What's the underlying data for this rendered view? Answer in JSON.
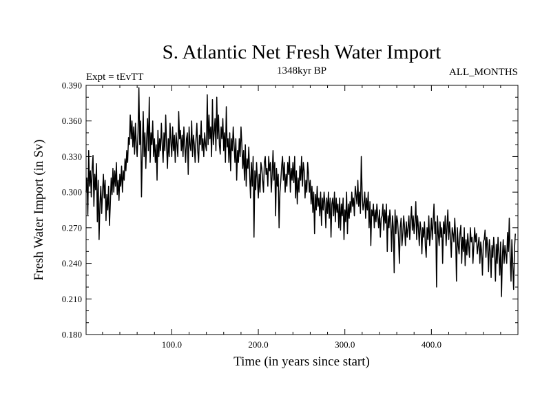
{
  "chart_data": {
    "type": "line",
    "title": "S. Atlantic Net Fresh Water Import",
    "subtitle_left": "Expt = tEvTT",
    "subtitle_center": "1348kyr BP",
    "subtitle_right": "ALL_MONTHS",
    "xlabel": "Time (in years since start)",
    "ylabel": "Fresh Water Import (in Sv)",
    "xlim": [
      1,
      500
    ],
    "ylim": [
      0.18,
      0.39
    ],
    "x_ticks": [
      100,
      200,
      300,
      400
    ],
    "x_tick_labels": [
      "100.0",
      "200.0",
      "300.0",
      "400.0"
    ],
    "y_ticks": [
      0.18,
      0.21,
      0.24,
      0.27,
      0.3,
      0.33,
      0.36,
      0.39
    ],
    "y_tick_labels": [
      "0.180",
      "0.210",
      "0.240",
      "0.270",
      "0.300",
      "0.330",
      "0.360",
      "0.390"
    ],
    "grid": false,
    "series": [
      {
        "name": "Fresh Water Import",
        "x_start": 1,
        "x_step": 1,
        "values": [
          0.3,
          0.312,
          0.281,
          0.335,
          0.305,
          0.318,
          0.296,
          0.32,
          0.331,
          0.288,
          0.315,
          0.302,
          0.324,
          0.275,
          0.31,
          0.26,
          0.29,
          0.305,
          0.282,
          0.3,
          0.315,
          0.295,
          0.31,
          0.276,
          0.298,
          0.285,
          0.305,
          0.272,
          0.29,
          0.312,
          0.298,
          0.32,
          0.3,
          0.318,
          0.305,
          0.325,
          0.298,
          0.31,
          0.293,
          0.315,
          0.305,
          0.322,
          0.3,
          0.318,
          0.31,
          0.328,
          0.318,
          0.335,
          0.325,
          0.346,
          0.34,
          0.365,
          0.345,
          0.36,
          0.338,
          0.355,
          0.332,
          0.358,
          0.34,
          0.33,
          0.35,
          0.388,
          0.34,
          0.36,
          0.296,
          0.335,
          0.368,
          0.33,
          0.35,
          0.32,
          0.345,
          0.362,
          0.335,
          0.38,
          0.325,
          0.35,
          0.34,
          0.36,
          0.33,
          0.345,
          0.325,
          0.34,
          0.31,
          0.352,
          0.33,
          0.345,
          0.335,
          0.358,
          0.34,
          0.325,
          0.35,
          0.335,
          0.365,
          0.34,
          0.32,
          0.345,
          0.33,
          0.358,
          0.342,
          0.33,
          0.355,
          0.335,
          0.348,
          0.325,
          0.35,
          0.34,
          0.33,
          0.368,
          0.345,
          0.352,
          0.335,
          0.348,
          0.33,
          0.355,
          0.34,
          0.325,
          0.345,
          0.35,
          0.315,
          0.355,
          0.34,
          0.335,
          0.36,
          0.33,
          0.348,
          0.34,
          0.325,
          0.345,
          0.358,
          0.335,
          0.325,
          0.348,
          0.34,
          0.36,
          0.335,
          0.345,
          0.33,
          0.35,
          0.34,
          0.335,
          0.382,
          0.34,
          0.365,
          0.345,
          0.355,
          0.33,
          0.378,
          0.34,
          0.35,
          0.362,
          0.335,
          0.38,
          0.345,
          0.365,
          0.34,
          0.332,
          0.355,
          0.345,
          0.362,
          0.335,
          0.35,
          0.325,
          0.372,
          0.338,
          0.345,
          0.325,
          0.35,
          0.318,
          0.345,
          0.335,
          0.355,
          0.34,
          0.325,
          0.345,
          0.31,
          0.335,
          0.325,
          0.345,
          0.33,
          0.355,
          0.34,
          0.32,
          0.335,
          0.31,
          0.34,
          0.305,
          0.328,
          0.32,
          0.338,
          0.315,
          0.295,
          0.325,
          0.305,
          0.33,
          0.262,
          0.318,
          0.302,
          0.325,
          0.31,
          0.295,
          0.315,
          0.3,
          0.325,
          0.32,
          0.31,
          0.3,
          0.325,
          0.33,
          0.315,
          0.32,
          0.305,
          0.33,
          0.318,
          0.325,
          0.3,
          0.315,
          0.335,
          0.31,
          0.325,
          0.28,
          0.32,
          0.305,
          0.315,
          0.27,
          0.3,
          0.31,
          0.322,
          0.33,
          0.31,
          0.325,
          0.3,
          0.315,
          0.305,
          0.325,
          0.315,
          0.33,
          0.3,
          0.32,
          0.31,
          0.325,
          0.308,
          0.33,
          0.295,
          0.318,
          0.29,
          0.312,
          0.3,
          0.322,
          0.31,
          0.33,
          0.305,
          0.325,
          0.318,
          0.295,
          0.31,
          0.3,
          0.325,
          0.315,
          0.3,
          0.31,
          0.29,
          0.305,
          0.283,
          0.3,
          0.265,
          0.298,
          0.285,
          0.305,
          0.288,
          0.295,
          0.28,
          0.3,
          0.272,
          0.295,
          0.285,
          0.3,
          0.29,
          0.27,
          0.295,
          0.282,
          0.3,
          0.278,
          0.295,
          0.262,
          0.29,
          0.295,
          0.28,
          0.3,
          0.275,
          0.295,
          0.283,
          0.29,
          0.27,
          0.295,
          0.268,
          0.29,
          0.28,
          0.295,
          0.26,
          0.285,
          0.275,
          0.3,
          0.265,
          0.29,
          0.278,
          0.292,
          0.283,
          0.3,
          0.288,
          0.295,
          0.28,
          0.305,
          0.298,
          0.29,
          0.31,
          0.288,
          0.3,
          0.282,
          0.33,
          0.298,
          0.285,
          0.29,
          0.3,
          0.278,
          0.295,
          0.285,
          0.3,
          0.27,
          0.292,
          0.255,
          0.285,
          0.28,
          0.29,
          0.27,
          0.285,
          0.275,
          0.29,
          0.28,
          0.27,
          0.285,
          0.262,
          0.278,
          0.28,
          0.29,
          0.268,
          0.285,
          0.274,
          0.29,
          0.25,
          0.28,
          0.27,
          0.285,
          0.275,
          0.25,
          0.28,
          0.27,
          0.232,
          0.285,
          0.265,
          0.28,
          0.275,
          0.262,
          0.24,
          0.27,
          0.278,
          0.255,
          0.265,
          0.28,
          0.27,
          0.255,
          0.275,
          0.262,
          0.27,
          0.28,
          0.26,
          0.275,
          0.288,
          0.268,
          0.28,
          0.265,
          0.275,
          0.292,
          0.26,
          0.28,
          0.27,
          0.255,
          0.275,
          0.268,
          0.248,
          0.27,
          0.262,
          0.275,
          0.255,
          0.245,
          0.27,
          0.26,
          0.28,
          0.255,
          0.265,
          0.278,
          0.26,
          0.275,
          0.29,
          0.265,
          0.275,
          0.22,
          0.28,
          0.265,
          0.255,
          0.275,
          0.262,
          0.27,
          0.24,
          0.275,
          0.265,
          0.28,
          0.255,
          0.27,
          0.285,
          0.26,
          0.275,
          0.262,
          0.245,
          0.27,
          0.265,
          0.258,
          0.278,
          0.262,
          0.225,
          0.27,
          0.255,
          0.248,
          0.265,
          0.272,
          0.24,
          0.262,
          0.25,
          0.27,
          0.238,
          0.26,
          0.247,
          0.265,
          0.255,
          0.245,
          0.27,
          0.258,
          0.262,
          0.24,
          0.255,
          0.27,
          0.258,
          0.265,
          0.248,
          0.255,
          0.262,
          0.24,
          0.258,
          0.25,
          0.23,
          0.258,
          0.26,
          0.268,
          0.245,
          0.262,
          0.255,
          0.233,
          0.26,
          0.25,
          0.228,
          0.255,
          0.245,
          0.262,
          0.25,
          0.225,
          0.256,
          0.24,
          0.262,
          0.248,
          0.23,
          0.258,
          0.212,
          0.245,
          0.26,
          0.24,
          0.255,
          0.248,
          0.24,
          0.266,
          0.25,
          0.278,
          0.245,
          0.225,
          0.26,
          0.238,
          0.218,
          0.252,
          0.265
        ]
      }
    ]
  }
}
